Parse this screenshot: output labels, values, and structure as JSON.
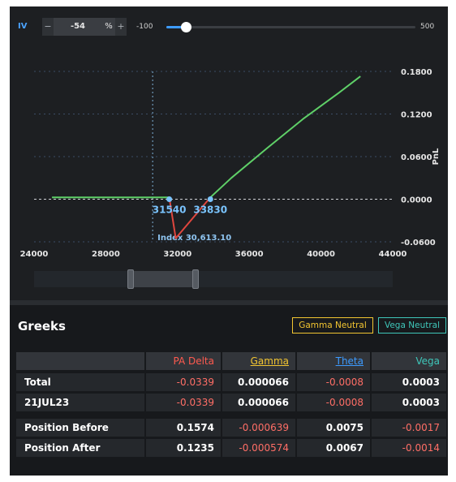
{
  "iv": {
    "label": "IV",
    "minus": "−",
    "value": "-54",
    "unit": "%",
    "plus": "+",
    "slider_min": "-100",
    "slider_max": "500",
    "slider_value": -54,
    "slider_range": [
      -100,
      500
    ]
  },
  "chart_data": {
    "type": "line",
    "x_ticks": [
      "24000",
      "28000",
      "32000",
      "36000",
      "40000",
      "44000"
    ],
    "y_ticks": [
      "0.1800",
      "0.1200",
      "0.0600",
      "0.0000",
      "-0.0600"
    ],
    "ylabel": "PnL",
    "xlim": [
      24000,
      44000
    ],
    "ylim": [
      -0.06,
      0.18
    ],
    "series": [
      {
        "color": "#5fd068",
        "points": [
          [
            25000,
            0.0025
          ],
          [
            31540,
            0.0025
          ]
        ]
      },
      {
        "color": "#e0463e",
        "points": [
          [
            31540,
            0.0025
          ],
          [
            31900,
            -0.055
          ],
          [
            33830,
            0.0025
          ]
        ]
      },
      {
        "color": "#5fd068",
        "points": [
          [
            33830,
            0.0025
          ],
          [
            35000,
            0.03
          ],
          [
            37000,
            0.072
          ],
          [
            39000,
            0.113
          ],
          [
            41000,
            0.15
          ],
          [
            42200,
            0.173
          ]
        ]
      }
    ],
    "markers": [
      {
        "x": 31540,
        "y": 0.0,
        "label": "31540"
      },
      {
        "x": 33830,
        "y": 0.0,
        "label": "33830"
      }
    ],
    "index_x": 30613.1,
    "index_label": "Index 30,613.10",
    "grid": true
  },
  "range_selector": {
    "start": 0.27,
    "end": 0.45
  },
  "greeks": {
    "title": "Greeks",
    "gamma_neutral": "Gamma Neutral",
    "vega_neutral": "Vega Neutral",
    "headers": [
      "PA Delta",
      "Gamma",
      "Theta",
      "Vega"
    ],
    "rows": [
      {
        "label": "Total",
        "values": [
          "-0.0339",
          "0.000066",
          "-0.0008",
          "0.0003"
        ]
      },
      {
        "label": "21JUL23",
        "values": [
          "-0.0339",
          "0.000066",
          "-0.0008",
          "0.0003"
        ]
      },
      {
        "label": "Position Before",
        "values": [
          "0.1574",
          "-0.000639",
          "0.0075",
          "-0.0017"
        ]
      },
      {
        "label": "Position After",
        "values": [
          "0.1235",
          "-0.000574",
          "0.0067",
          "-0.0014"
        ]
      }
    ]
  }
}
